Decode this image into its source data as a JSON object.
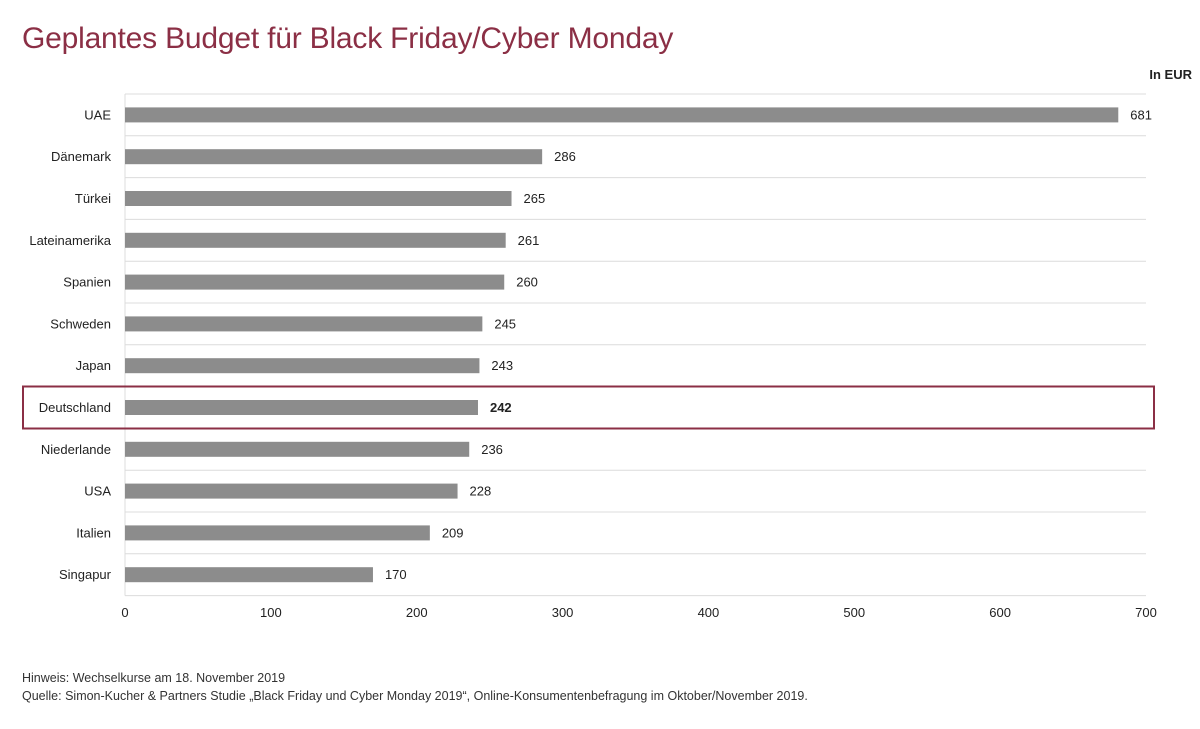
{
  "title": "Geplantes Budget für Black Friday/Cyber Monday",
  "unit_label": "In EUR",
  "notes": {
    "hint": "Hinweis: Wechselkurse am 18. November 2019",
    "source": "Quelle: Simon-Kucher & Partners Studie „Black Friday und Cyber Monday 2019“, Online-Konsumentenbefragung im Oktober/November 2019."
  },
  "colors": {
    "bar": "#8c8c8c",
    "highlight_border": "#8b2f45",
    "title": "#8b2f45"
  },
  "chart_data": {
    "type": "bar",
    "orientation": "horizontal",
    "categories": [
      "UAE",
      "Dänemark",
      "Türkei",
      "Lateinamerika",
      "Spanien",
      "Schweden",
      "Japan",
      "Deutschland",
      "Niederlande",
      "USA",
      "Italien",
      "Singapur"
    ],
    "values": [
      681,
      286,
      265,
      261,
      260,
      245,
      243,
      242,
      236,
      228,
      209,
      170
    ],
    "highlight": "Deutschland",
    "xlim": [
      0,
      700
    ],
    "xticks": [
      0,
      100,
      200,
      300,
      400,
      500,
      600,
      700
    ],
    "grid": "horizontal separators",
    "title": "Geplantes Budget für Black Friday/Cyber Monday",
    "xlabel": "",
    "ylabel": ""
  }
}
